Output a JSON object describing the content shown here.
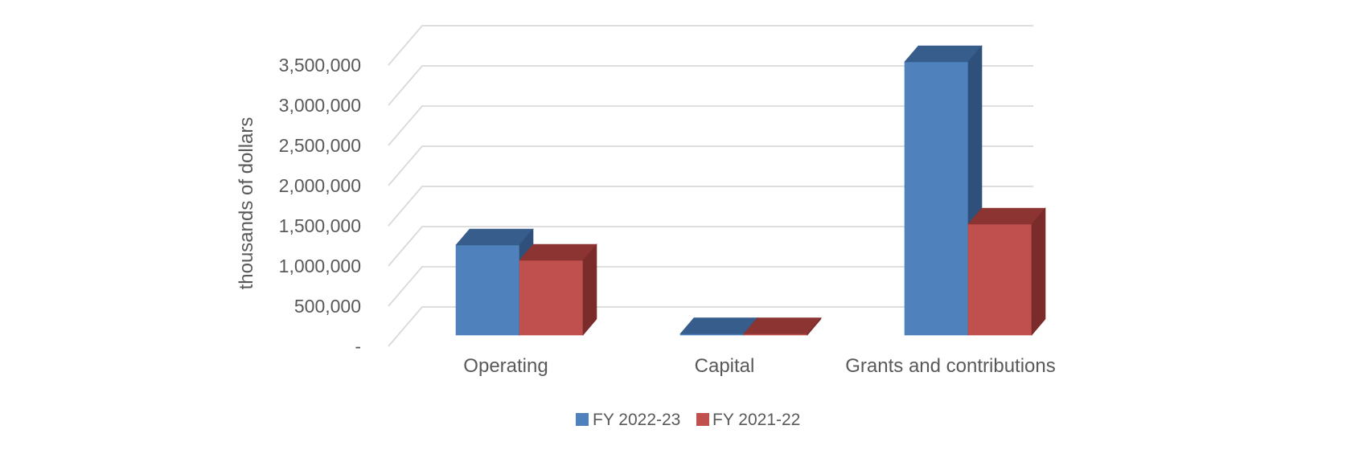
{
  "chart_data": {
    "type": "bar",
    "subtype": "3d-clustered-column",
    "title": "",
    "categories": [
      "Operating",
      "Capital",
      "Grants and contributions"
    ],
    "series": [
      {
        "name": "FY 2022-23",
        "values": [
          1120000,
          15000,
          3400000
        ],
        "colors": {
          "front": "#4F81BD",
          "top": "#365D8C",
          "side": "#2F507A"
        }
      },
      {
        "name": "FY 2021-22",
        "values": [
          930000,
          15000,
          1380000
        ],
        "colors": {
          "front": "#C0504D",
          "top": "#8B3432",
          "side": "#7A2C2A"
        }
      }
    ],
    "xlabel": "",
    "ylabel": "thousands of dollars",
    "ylim": [
      0,
      3500000
    ],
    "ytick_interval": 500000,
    "ytick_labels": [
      "-",
      "500,000",
      "1,000,000",
      "1,500,000",
      "2,000,000",
      "2,500,000",
      "3,000,000",
      "3,500,000"
    ],
    "grid": true,
    "legend_position": "bottom",
    "gridline_color": "#D9D9D9",
    "text_color": "#595959",
    "background_color": "#FFFFFF"
  }
}
